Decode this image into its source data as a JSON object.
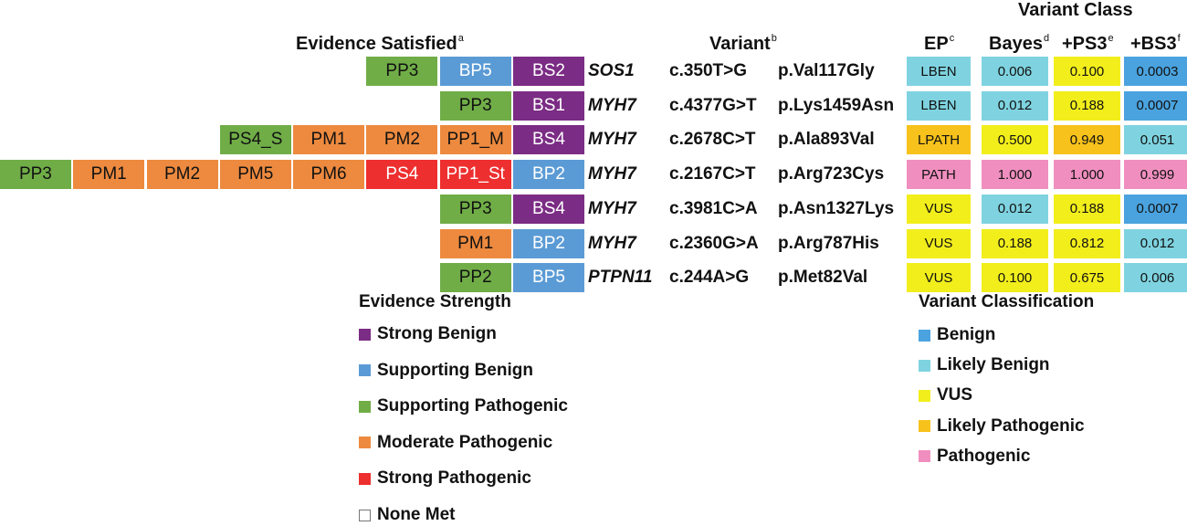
{
  "headers": {
    "evidence": "Evidence Satisfied",
    "evidence_sup": "a",
    "variant": "Variant",
    "variant_sup": "b",
    "ep": "EP",
    "ep_sup": "c",
    "variant_class": "Variant Class",
    "bayes": "Bayes",
    "bayes_sup": "d",
    "ps3": "+PS3",
    "ps3_sup": "e",
    "bs3": "+BS3",
    "bs3_sup": "f"
  },
  "evidence_colors": {
    "strong_benign": "#7b2c84",
    "supporting_benign": "#5b9bd5",
    "supporting_pathogenic": "#70ad47",
    "moderate_pathogenic": "#ed8a3f",
    "strong_pathogenic": "#ee2f2f"
  },
  "class_colors": {
    "BEN": "#4aa3df",
    "LBEN": "#7fd3e0",
    "VUS": "#f2ee1c",
    "LPATH": "#f7c21b",
    "PATH": "#f08fbf"
  },
  "rows": [
    {
      "evidence": [
        {
          "label": "PP3",
          "strength": "supporting_pathogenic"
        },
        {
          "label": "BP5",
          "strength": "supporting_benign"
        },
        {
          "label": "BS2",
          "strength": "strong_benign"
        }
      ],
      "gene": "SOS1",
      "cdna": "c.350T>G",
      "protein": "p.Val117Gly",
      "ep": "LBEN",
      "bayes": {
        "value": "0.006",
        "class": "LBEN"
      },
      "ps3": {
        "value": "0.100",
        "class": "VUS"
      },
      "bs3": {
        "value": "0.0003",
        "class": "BEN"
      }
    },
    {
      "evidence": [
        {
          "label": "PP3",
          "strength": "supporting_pathogenic"
        },
        {
          "label": "BS1",
          "strength": "strong_benign"
        }
      ],
      "gene": "MYH7",
      "cdna": "c.4377G>T",
      "protein": "p.Lys1459Asn",
      "ep": "LBEN",
      "bayes": {
        "value": "0.012",
        "class": "LBEN"
      },
      "ps3": {
        "value": "0.188",
        "class": "VUS"
      },
      "bs3": {
        "value": "0.0007",
        "class": "BEN"
      }
    },
    {
      "evidence": [
        {
          "label": "PS4_S",
          "strength": "supporting_pathogenic"
        },
        {
          "label": "PM1",
          "strength": "moderate_pathogenic"
        },
        {
          "label": "PM2",
          "strength": "moderate_pathogenic"
        },
        {
          "label": "PP1_M",
          "strength": "moderate_pathogenic"
        },
        {
          "label": "BS4",
          "strength": "strong_benign"
        }
      ],
      "gene": "MYH7",
      "cdna": "c.2678C>T",
      "protein": "p.Ala893Val",
      "ep": "LPATH",
      "bayes": {
        "value": "0.500",
        "class": "VUS"
      },
      "ps3": {
        "value": "0.949",
        "class": "LPATH"
      },
      "bs3": {
        "value": "0.051",
        "class": "LBEN"
      }
    },
    {
      "evidence": [
        {
          "label": "PP3",
          "strength": "supporting_pathogenic"
        },
        {
          "label": "PM1",
          "strength": "moderate_pathogenic"
        },
        {
          "label": "PM2",
          "strength": "moderate_pathogenic"
        },
        {
          "label": "PM5",
          "strength": "moderate_pathogenic"
        },
        {
          "label": "PM6",
          "strength": "moderate_pathogenic"
        },
        {
          "label": "PS4",
          "strength": "strong_pathogenic"
        },
        {
          "label": "PP1_St",
          "strength": "strong_pathogenic"
        },
        {
          "label": "BP2",
          "strength": "supporting_benign"
        }
      ],
      "gene": "MYH7",
      "cdna": "c.2167C>T",
      "protein": "p.Arg723Cys",
      "ep": "PATH",
      "bayes": {
        "value": "1.000",
        "class": "PATH"
      },
      "ps3": {
        "value": "1.000",
        "class": "PATH"
      },
      "bs3": {
        "value": "0.999",
        "class": "PATH"
      }
    },
    {
      "evidence": [
        {
          "label": "PP3",
          "strength": "supporting_pathogenic"
        },
        {
          "label": "BS4",
          "strength": "strong_benign"
        }
      ],
      "gene": "MYH7",
      "cdna": "c.3981C>A",
      "protein": "p.Asn1327Lys",
      "ep": "VUS",
      "bayes": {
        "value": "0.012",
        "class": "LBEN"
      },
      "ps3": {
        "value": "0.188",
        "class": "VUS"
      },
      "bs3": {
        "value": "0.0007",
        "class": "BEN"
      }
    },
    {
      "evidence": [
        {
          "label": "PM1",
          "strength": "moderate_pathogenic"
        },
        {
          "label": "BP2",
          "strength": "supporting_benign"
        }
      ],
      "gene": "MYH7",
      "cdna": "c.2360G>A",
      "protein": "p.Arg787His",
      "ep": "VUS",
      "bayes": {
        "value": "0.188",
        "class": "VUS"
      },
      "ps3": {
        "value": "0.812",
        "class": "VUS"
      },
      "bs3": {
        "value": "0.012",
        "class": "LBEN"
      }
    },
    {
      "evidence": [
        {
          "label": "PP2",
          "strength": "supporting_pathogenic"
        },
        {
          "label": "BP5",
          "strength": "supporting_benign"
        }
      ],
      "gene": "PTPN11",
      "cdna": "c.244A>G",
      "protein": "p.Met82Val",
      "ep": "VUS",
      "bayes": {
        "value": "0.100",
        "class": "VUS"
      },
      "ps3": {
        "value": "0.675",
        "class": "VUS"
      },
      "bs3": {
        "value": "0.006",
        "class": "LBEN"
      }
    }
  ],
  "legend_strength": {
    "title": "Evidence Strength",
    "items": [
      {
        "label": "Strong Benign",
        "key": "strong_benign"
      },
      {
        "label": "Supporting Benign",
        "key": "supporting_benign"
      },
      {
        "label": "Supporting Pathogenic",
        "key": "supporting_pathogenic"
      },
      {
        "label": "Moderate Pathogenic",
        "key": "moderate_pathogenic"
      },
      {
        "label": "Strong Pathogenic",
        "key": "strong_pathogenic"
      },
      {
        "label": "None Met",
        "key": "none"
      }
    ]
  },
  "legend_class": {
    "title": "Variant Classification",
    "items": [
      {
        "label": "Benign",
        "key": "BEN"
      },
      {
        "label": "Likely Benign",
        "key": "LBEN"
      },
      {
        "label": "VUS",
        "key": "VUS"
      },
      {
        "label": "Likely Pathogenic",
        "key": "LPATH"
      },
      {
        "label": "Pathogenic",
        "key": "PATH"
      }
    ]
  }
}
